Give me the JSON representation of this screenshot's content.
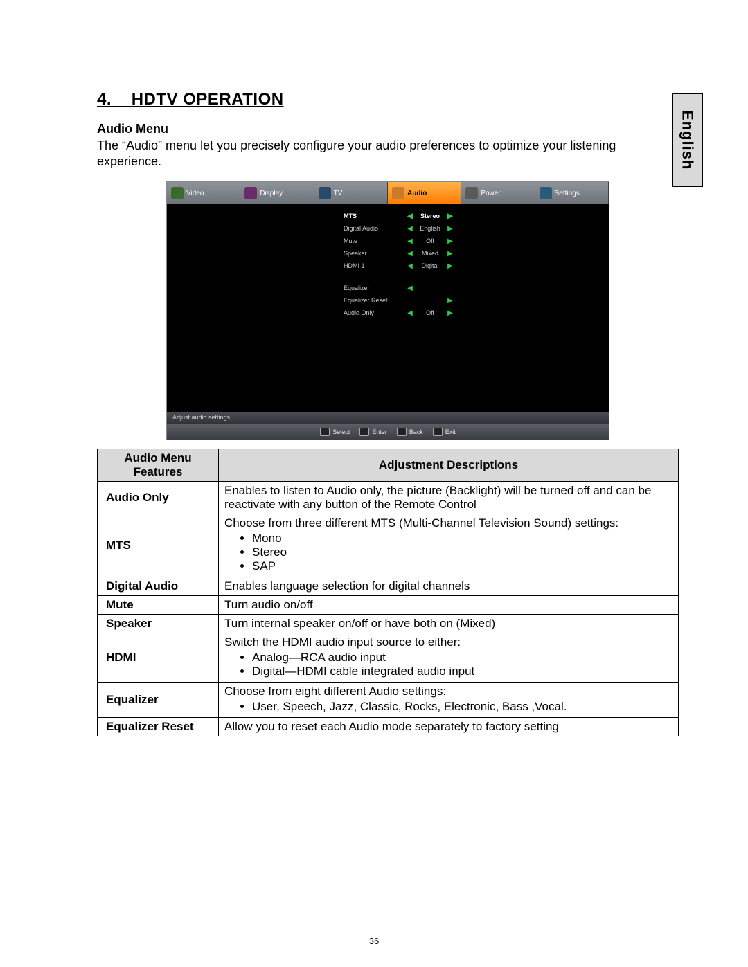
{
  "language_tab": "English",
  "section_number": "4.",
  "section_title": "HDTV OPERATION",
  "subheading": "Audio Menu",
  "intro": "The “Audio” menu let you precisely configure your audio preferences to optimize your listening experience.",
  "page_number": "36",
  "osd": {
    "tabs": [
      {
        "label": "Video",
        "icon_bg": "#3a6b2a",
        "active": false
      },
      {
        "label": "Display",
        "icon_bg": "#6b2a6b",
        "active": false
      },
      {
        "label": "TV",
        "icon_bg": "#2a4a6b",
        "active": false
      },
      {
        "label": "Audio",
        "icon_bg": "#c97a2a",
        "active": true
      },
      {
        "label": "Power",
        "icon_bg": "#5a5a5a",
        "active": false
      },
      {
        "label": "Settings",
        "icon_bg": "#2a5a7a",
        "active": false
      }
    ],
    "rows": [
      {
        "label": "MTS",
        "value": "Stereo",
        "left": true,
        "right": true,
        "sel": true
      },
      {
        "label": "Digital Audio",
        "value": "English",
        "left": true,
        "right": true,
        "sel": false
      },
      {
        "label": "Mute",
        "value": "Off",
        "left": true,
        "right": true,
        "sel": false
      },
      {
        "label": "Speaker",
        "value": "Mixed",
        "left": true,
        "right": true,
        "sel": false
      },
      {
        "label": "HDMI 1",
        "value": "Digital",
        "left": true,
        "right": true,
        "sel": false
      },
      {
        "gap": true
      },
      {
        "label": "Equalizer",
        "value": "",
        "left": true,
        "right": false,
        "sel": false
      },
      {
        "label": "Equalizer Reset",
        "value": "",
        "left": false,
        "right": true,
        "sel": false
      },
      {
        "label": "Audio Only",
        "value": "Off",
        "left": true,
        "right": true,
        "sel": false
      }
    ],
    "status_text": "Adjust audio settings",
    "footer": [
      "Select",
      "Enter",
      "Back",
      "Exit"
    ]
  },
  "table": {
    "header_feature": "Audio Menu Features",
    "header_desc": "Adjustment Descriptions",
    "rows": [
      {
        "feature": "Audio Only",
        "desc": "Enables to listen to Audio only, the  picture (Backlight) will be turned off and can be reactivate with any button of the Remote Control"
      },
      {
        "feature": "MTS",
        "desc_pre": "Choose from three different MTS (Multi-Channel Television Sound) settings:",
        "bullets": [
          "Mono",
          "Stereo",
          "SAP"
        ]
      },
      {
        "feature": "Digital Audio",
        "desc": "Enables language selection for digital channels"
      },
      {
        "feature": "Mute",
        "desc": "Turn audio on/off"
      },
      {
        "feature": "Speaker",
        "desc": "Turn internal speaker on/off or have both on (Mixed)"
      },
      {
        "feature": "HDMI",
        "desc_pre": "Switch the HDMI audio input source to either:",
        "bullets": [
          "Analog—RCA audio input",
          "Digital—HDMI cable integrated audio input"
        ]
      },
      {
        "feature": "Equalizer",
        "desc_pre": "Choose from eight   different Audio settings:",
        "bullets": [
          "User, Speech, Jazz, Classic, Rocks, Electronic, Bass ,Vocal."
        ]
      },
      {
        "feature": "Equalizer Reset",
        "desc": "Allow you to reset each Audio mode separately to factory  setting"
      }
    ]
  }
}
